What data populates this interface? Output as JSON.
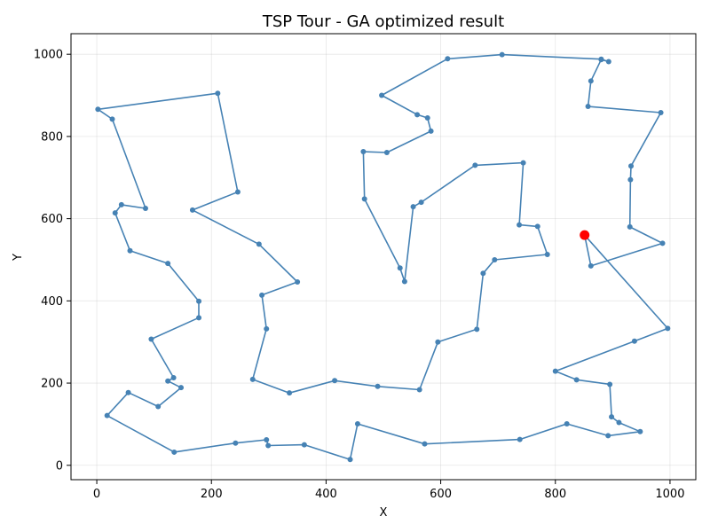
{
  "chart_data": {
    "type": "line",
    "title": "TSP Tour - GA optimized result",
    "xlabel": "X",
    "ylabel": "Y",
    "xlim": [
      -45,
      1045
    ],
    "ylim": [
      -35,
      1050
    ],
    "xticks": [
      0,
      200,
      400,
      600,
      800,
      1000
    ],
    "yticks": [
      0,
      200,
      400,
      600,
      800,
      1000
    ],
    "grid": true,
    "colors": {
      "route": "#4682b4",
      "start": "#ff0000"
    },
    "start_point": {
      "x": 851,
      "y": 560
    },
    "series": [
      {
        "x": [
          851,
          862,
          987,
          930,
          931,
          932,
          984,
          857,
          862,
          880,
          893,
          880,
          707,
          612,
          497,
          559,
          577,
          583,
          506,
          465,
          467,
          529,
          537,
          552,
          566,
          660,
          744,
          737,
          769,
          786,
          694,
          674,
          663,
          595,
          563,
          490,
          415,
          336,
          272,
          296,
          288,
          350,
          283,
          167,
          246,
          211,
          2,
          27,
          85,
          43,
          32,
          58,
          124,
          178,
          178,
          95,
          134,
          124,
          147,
          107,
          55,
          18,
          135,
          242,
          296,
          299,
          362,
          442,
          455,
          572,
          738,
          820,
          892,
          948,
          911,
          898,
          895,
          837,
          800,
          938,
          996,
          851
        ],
        "y": [
          560,
          485,
          540,
          580,
          695,
          728,
          858,
          873,
          935,
          987,
          982,
          988,
          999,
          989,
          900,
          853,
          845,
          813,
          761,
          763,
          648,
          480,
          447,
          629,
          640,
          730,
          736,
          585,
          581,
          513,
          500,
          467,
          331,
          300,
          184,
          192,
          206,
          176,
          209,
          332,
          414,
          446,
          538,
          621,
          665,
          905,
          866,
          842,
          625,
          634,
          614,
          522,
          491,
          399,
          359,
          307,
          213,
          205,
          189,
          143,
          177,
          121,
          32,
          54,
          62,
          48,
          50,
          14,
          101,
          52,
          63,
          101,
          72,
          82,
          104,
          118,
          197,
          208,
          229,
          302,
          333,
          560
        ]
      }
    ]
  }
}
